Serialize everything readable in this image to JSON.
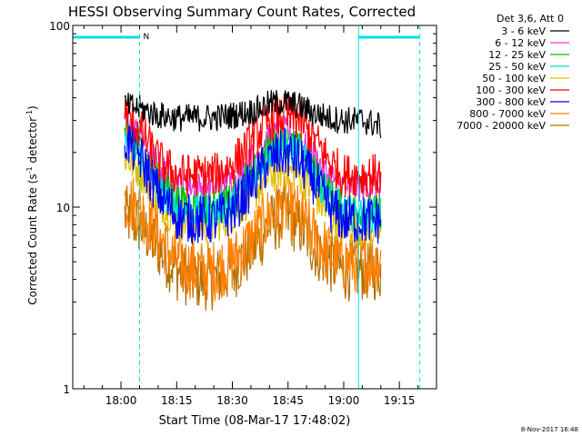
{
  "chart_data": {
    "type": "line",
    "title": "HESSI Observing Summary Count Rates, Corrected",
    "xlabel": "Start Time (08-Mar-17 17:48:02)",
    "ylabel_main": "Corrected Count Rate (s",
    "ylabel_sup1": "-1",
    "ylabel_mid": " detector",
    "ylabel_sup2": "-1",
    "ylabel_end": ")",
    "y_scale": "log",
    "ylim": [
      1,
      100
    ],
    "y_ticks": [
      {
        "value": 1,
        "label": "1"
      },
      {
        "value": 10,
        "label": "10"
      },
      {
        "value": 100,
        "label": "100"
      }
    ],
    "xlim_minutes": [
      -13,
      85
    ],
    "x_ticks": [
      {
        "minutes": 0,
        "label": "18:00"
      },
      {
        "minutes": 15,
        "label": "18:15"
      },
      {
        "minutes": 30,
        "label": "18:30"
      },
      {
        "minutes": 45,
        "label": "18:45"
      },
      {
        "minutes": 60,
        "label": "19:00"
      },
      {
        "minutes": 75,
        "label": "19:15"
      }
    ],
    "data_range_minutes": [
      1,
      70
    ],
    "noise_amplitude": [
      0.18,
      0.2,
      0.22,
      0.23,
      0.25,
      0.28,
      0.32,
      0.4,
      0.4
    ],
    "legend": {
      "header": "Det 3,6, Att 0",
      "position": "top-right, outside plot"
    },
    "series": [
      {
        "name": "3 - 6 keV",
        "color": "#000000",
        "points": [
          [
            1,
            36
          ],
          [
            5,
            35
          ],
          [
            10,
            32
          ],
          [
            15,
            31
          ],
          [
            20,
            31
          ],
          [
            25,
            31
          ],
          [
            30,
            32
          ],
          [
            36,
            34
          ],
          [
            40,
            37
          ],
          [
            44,
            38
          ],
          [
            48,
            36
          ],
          [
            52,
            33
          ],
          [
            56,
            31
          ],
          [
            60,
            30
          ],
          [
            65,
            30
          ],
          [
            70,
            28
          ]
        ]
      },
      {
        "name": "6 - 12 keV",
        "color": "#e040e0",
        "points": [
          [
            1,
            30
          ],
          [
            5,
            25
          ],
          [
            10,
            17
          ],
          [
            15,
            14
          ],
          [
            20,
            13
          ],
          [
            25,
            13
          ],
          [
            30,
            14
          ],
          [
            36,
            19
          ],
          [
            40,
            24
          ],
          [
            44,
            26
          ],
          [
            48,
            24
          ],
          [
            52,
            19
          ],
          [
            56,
            15
          ],
          [
            60,
            13
          ],
          [
            65,
            13
          ],
          [
            70,
            13
          ]
        ]
      },
      {
        "name": "12 - 25 keV",
        "color": "#00c000",
        "points": [
          [
            1,
            26
          ],
          [
            5,
            21
          ],
          [
            10,
            14
          ],
          [
            15,
            11
          ],
          [
            20,
            10
          ],
          [
            25,
            10
          ],
          [
            30,
            11
          ],
          [
            36,
            16
          ],
          [
            40,
            21
          ],
          [
            44,
            23
          ],
          [
            48,
            21
          ],
          [
            52,
            16
          ],
          [
            56,
            12
          ],
          [
            60,
            10
          ],
          [
            65,
            9.5
          ],
          [
            70,
            9.5
          ]
        ]
      },
      {
        "name": "25 - 50 keV",
        "color": "#00e0d0",
        "points": [
          [
            1,
            23
          ],
          [
            5,
            19
          ],
          [
            10,
            12.5
          ],
          [
            15,
            10
          ],
          [
            20,
            9.5
          ],
          [
            25,
            9.5
          ],
          [
            30,
            10.5
          ],
          [
            36,
            15
          ],
          [
            40,
            20
          ],
          [
            44,
            22
          ],
          [
            48,
            20
          ],
          [
            52,
            15
          ],
          [
            56,
            11.5
          ],
          [
            60,
            9.5
          ],
          [
            65,
            9
          ],
          [
            70,
            9
          ]
        ]
      },
      {
        "name": "50 - 100 keV",
        "color": "#e0c000",
        "points": [
          [
            1,
            19
          ],
          [
            5,
            16
          ],
          [
            10,
            11
          ],
          [
            15,
            8.5
          ],
          [
            20,
            8
          ],
          [
            25,
            8
          ],
          [
            30,
            9
          ],
          [
            36,
            12
          ],
          [
            40,
            15
          ],
          [
            44,
            16
          ],
          [
            48,
            15
          ],
          [
            52,
            12
          ],
          [
            56,
            9
          ],
          [
            60,
            8
          ],
          [
            65,
            7.5
          ],
          [
            70,
            7.5
          ]
        ]
      },
      {
        "name": "100 - 300 keV",
        "color": "#ff0000",
        "points": [
          [
            1,
            33
          ],
          [
            5,
            27
          ],
          [
            10,
            18
          ],
          [
            15,
            15
          ],
          [
            20,
            15
          ],
          [
            25,
            15
          ],
          [
            30,
            17
          ],
          [
            36,
            24
          ],
          [
            40,
            30
          ],
          [
            44,
            32
          ],
          [
            48,
            30
          ],
          [
            52,
            24
          ],
          [
            56,
            18
          ],
          [
            60,
            15
          ],
          [
            65,
            15
          ],
          [
            70,
            15
          ]
        ]
      },
      {
        "name": "300 - 800 keV",
        "color": "#0000ff",
        "points": [
          [
            1,
            24
          ],
          [
            5,
            19
          ],
          [
            10,
            12
          ],
          [
            15,
            9
          ],
          [
            20,
            8.5
          ],
          [
            25,
            8.5
          ],
          [
            30,
            9.5
          ],
          [
            36,
            14
          ],
          [
            40,
            18
          ],
          [
            44,
            20
          ],
          [
            48,
            18
          ],
          [
            52,
            14
          ],
          [
            56,
            10
          ],
          [
            60,
            8.5
          ],
          [
            65,
            8.5
          ],
          [
            70,
            8.5
          ]
        ]
      },
      {
        "name": "800 - 7000 keV",
        "color": "#ff8000",
        "points": [
          [
            1,
            11
          ],
          [
            5,
            10
          ],
          [
            10,
            7
          ],
          [
            15,
            5
          ],
          [
            20,
            4.5
          ],
          [
            25,
            4.5
          ],
          [
            30,
            5
          ],
          [
            36,
            7
          ],
          [
            40,
            9
          ],
          [
            44,
            10
          ],
          [
            48,
            9
          ],
          [
            52,
            7
          ],
          [
            56,
            5.5
          ],
          [
            60,
            5
          ],
          [
            65,
            5
          ],
          [
            70,
            5
          ]
        ]
      },
      {
        "name": "7000 - 20000 keV",
        "color": "#b07000",
        "points": [
          [
            1,
            9
          ],
          [
            5,
            8
          ],
          [
            10,
            6
          ],
          [
            15,
            4.5
          ],
          [
            20,
            4
          ],
          [
            25,
            4
          ],
          [
            30,
            4.5
          ],
          [
            36,
            6
          ],
          [
            40,
            8
          ],
          [
            44,
            9
          ],
          [
            48,
            8
          ],
          [
            52,
            6
          ],
          [
            56,
            5
          ],
          [
            60,
            4.5
          ],
          [
            65,
            4.5
          ],
          [
            70,
            4.5
          ]
        ]
      }
    ],
    "vertical_lines": [
      {
        "minutes": -13,
        "style": "solid",
        "color": "#00e0e0"
      },
      {
        "minutes": 5,
        "style": "dashed",
        "color": "#00e0e0"
      },
      {
        "minutes": 64,
        "style": "solid",
        "color": "#00e0e0"
      },
      {
        "minutes": 80.5,
        "style": "dashed",
        "color": "#00e0e0"
      }
    ],
    "night_bars": [
      {
        "from": -13,
        "to": 5,
        "label": "N"
      },
      {
        "from": 64,
        "to": 80.5,
        "label": ""
      }
    ],
    "timestamp": "8-Nov-2017 16:48"
  }
}
